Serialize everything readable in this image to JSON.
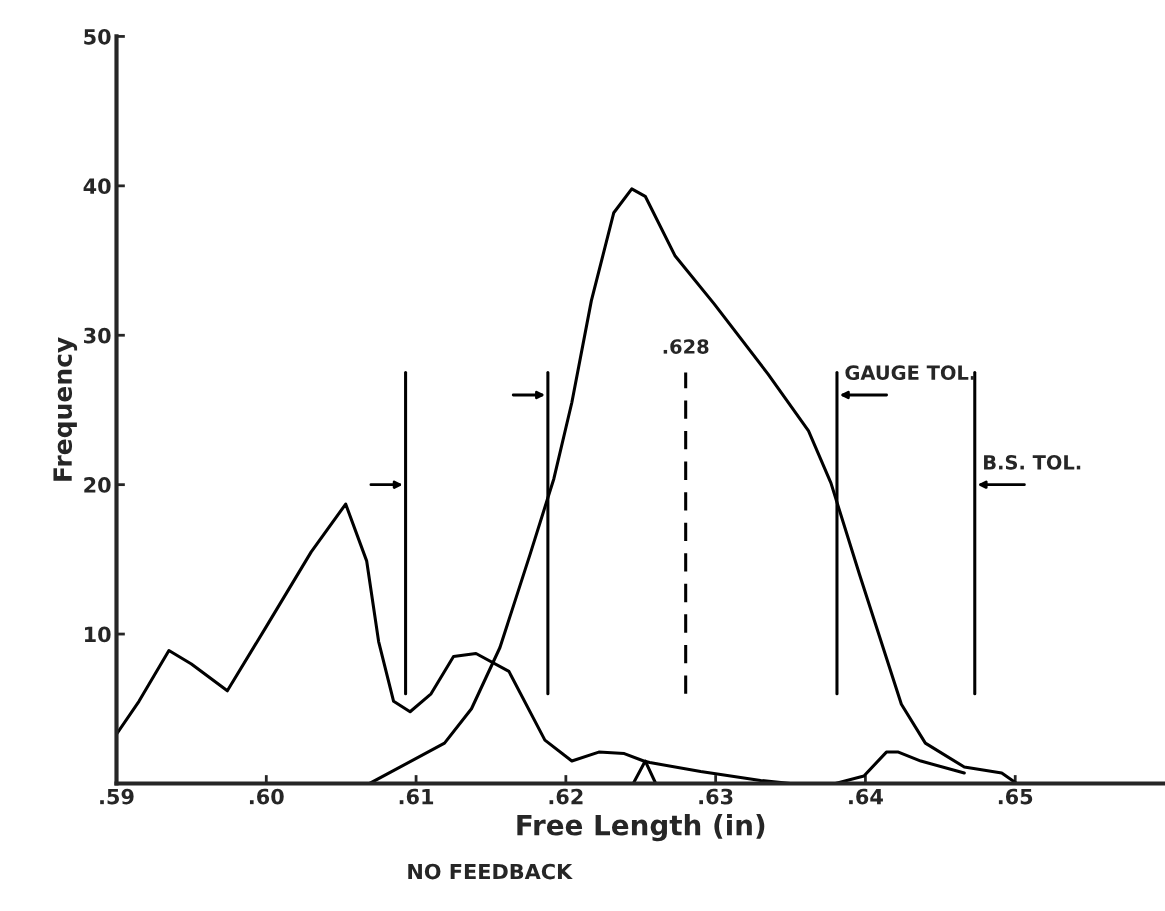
{
  "chart_data": {
    "type": "line",
    "xlabel": "Free Length (in)",
    "ylabel": "Frequency",
    "xlim": [
      0.59,
      0.66
    ],
    "ylim": [
      0,
      50
    ],
    "xticks": [
      {
        "value": 0.59,
        "label": ".59"
      },
      {
        "value": 0.6,
        "label": ".60"
      },
      {
        "value": 0.61,
        "label": ".61"
      },
      {
        "value": 0.62,
        "label": ".62"
      },
      {
        "value": 0.63,
        "label": ".63"
      },
      {
        "value": 0.64,
        "label": ".64"
      },
      {
        "value": 0.65,
        "label": ".65"
      }
    ],
    "yticks": [
      10,
      20,
      30,
      40,
      50
    ],
    "grid": false,
    "legend": false,
    "marker": "none",
    "line_style": "solid",
    "series": [
      {
        "color": "#000000",
        "x": [
          0.59,
          0.5915,
          0.5935,
          0.595,
          0.5974,
          0.6,
          0.603,
          0.6053,
          0.6067,
          0.6075,
          0.6085,
          0.6096,
          0.611,
          0.6125,
          0.614,
          0.6162,
          0.6186,
          0.6204,
          0.6222,
          0.6239,
          0.6252,
          0.6256,
          0.629,
          0.633,
          0.635
        ],
        "values": [
          3.3,
          5.5,
          8.9,
          8.0,
          6.2,
          10.5,
          15.5,
          18.7,
          14.9,
          9.5,
          5.5,
          4.8,
          6.0,
          8.5,
          8.7,
          7.5,
          2.9,
          1.5,
          2.1,
          2.0,
          1.5,
          1.4,
          0.8,
          0.2,
          0
        ]
      },
      {
        "color": "#000000",
        "x": [
          0.6069,
          0.6119,
          0.6137,
          0.6156,
          0.6176,
          0.6192,
          0.6204,
          0.6217,
          0.6232,
          0.6244,
          0.6253,
          0.6273,
          0.6299,
          0.6335,
          0.6362,
          0.6377,
          0.6396,
          0.6424,
          0.644,
          0.6466,
          0.6491,
          0.6501
        ],
        "values": [
          0,
          2.7,
          5.0,
          9.1,
          15.3,
          20.4,
          25.5,
          32.3,
          38.2,
          39.8,
          39.3,
          35.3,
          32.1,
          27.4,
          23.6,
          20.1,
          14.0,
          5.3,
          2.7,
          1.1,
          0.7,
          0
        ]
      },
      {
        "color": "#000000",
        "x": [
          0.6245,
          0.6253,
          0.626
        ],
        "values": [
          0,
          1.5,
          0
        ]
      },
      {
        "color": "#000000",
        "x": [
          0.638,
          0.6399,
          0.6414,
          0.6422,
          0.6437,
          0.6466
        ],
        "values": [
          0,
          0.5,
          2.1,
          2.1,
          1.5,
          0.7
        ]
      }
    ],
    "ref_lines": [
      {
        "axis": "x",
        "value": 0.6093,
        "label": null,
        "color": "#000000",
        "line_style": "solid"
      },
      {
        "axis": "x",
        "value": 0.6188,
        "label": null,
        "color": "#000000",
        "line_style": "solid"
      },
      {
        "axis": "x",
        "value": 0.628,
        "label": ".628",
        "color": "#000000",
        "line_style": "dashed"
      },
      {
        "axis": "x",
        "value": 0.6381,
        "label": "GAUGE TOL.",
        "color": "#000000",
        "line_style": "solid"
      },
      {
        "axis": "x",
        "value": 0.6473,
        "label": "B.S. TOL.",
        "color": "#000000",
        "line_style": "solid"
      }
    ],
    "annotations": [
      "NO FEEDBACK"
    ]
  }
}
